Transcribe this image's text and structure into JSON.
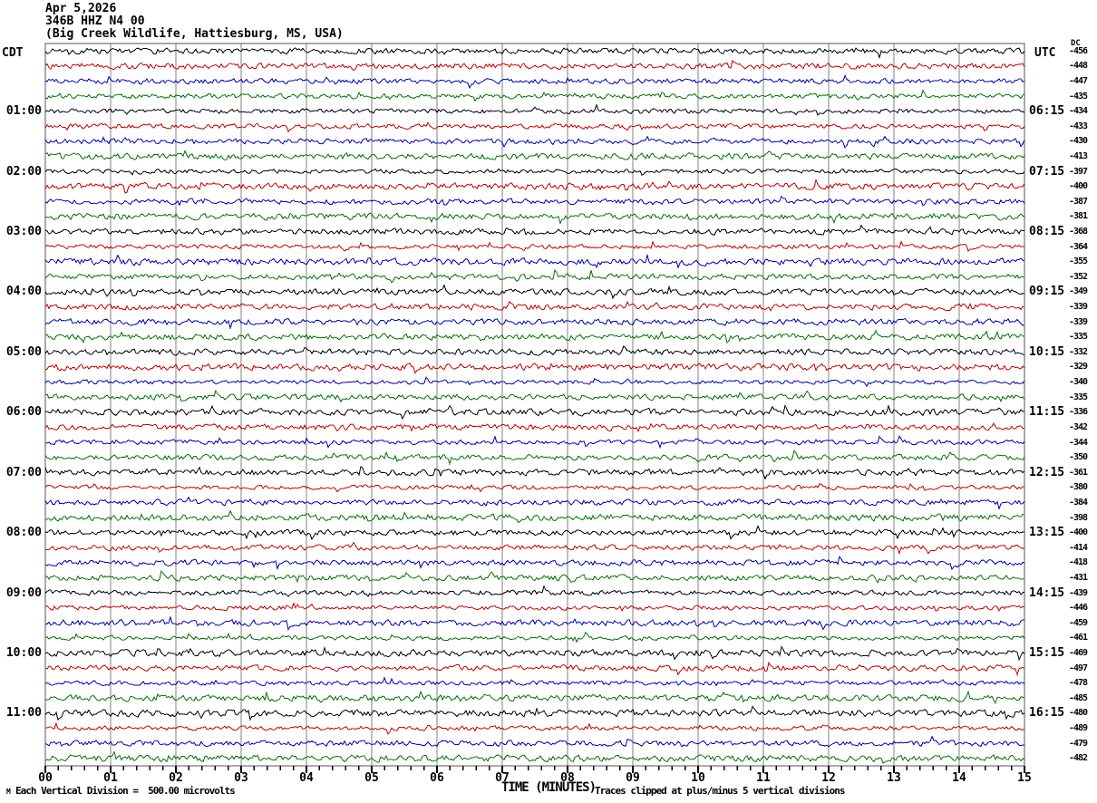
{
  "header": {
    "date": "Apr 5,2026",
    "station": "346B HHZ N4 00",
    "location": "(Big Creek Wildlife, Hattiesburg, MS, USA)"
  },
  "axes": {
    "left_title": "CDT",
    "right_title": "UTC",
    "dc_title": "DC",
    "x_title": "TIME (MINUTES)",
    "x_ticks": [
      "00",
      "01",
      "02",
      "03",
      "04",
      "05",
      "06",
      "07",
      "08",
      "09",
      "10",
      "11",
      "12",
      "13",
      "14",
      "15"
    ]
  },
  "footer": {
    "left_note": "Each Vertical Division =  500.00 microvolts",
    "right_note": "Traces clipped at plus/minus 5 vertical divisions",
    "corner_mark": "M"
  },
  "chart_data": {
    "type": "line",
    "title": "Helicorder seismogram — 346B HHZ N4 00, Big Creek Wildlife, Hattiesburg, MS, USA, Apr 5,2026",
    "xlabel": "TIME (MINUTES)",
    "x_range": [
      0,
      15
    ],
    "x_major_tick_minutes": 1,
    "x_minor_ticks_per_major": 4,
    "rows": 48,
    "minutes_per_row": 15,
    "row_color_cycle": [
      "#000000",
      "#cc0000",
      "#0000bb",
      "#007700"
    ],
    "grid_color": "#808080",
    "border_color": "#555555",
    "labeled_row_interval": 4,
    "first_labeled_row": 4,
    "left_time_labels_cdt": [
      "01:00",
      "02:00",
      "03:00",
      "04:00",
      "05:00",
      "06:00",
      "07:00",
      "08:00",
      "09:00",
      "10:00",
      "11:00"
    ],
    "right_time_labels_utc": [
      "06:15",
      "07:15",
      "08:15",
      "09:15",
      "10:15",
      "11:15",
      "12:15",
      "13:15",
      "14:15",
      "15:15",
      "16:15"
    ],
    "dc_offsets": [
      -456,
      -448,
      -447,
      -435,
      -434,
      -433,
      -430,
      -413,
      -397,
      -400,
      -387,
      -381,
      -368,
      -364,
      -355,
      -352,
      -349,
      -339,
      -339,
      -335,
      -332,
      -329,
      -340,
      -335,
      -336,
      -342,
      -344,
      -350,
      -361,
      -380,
      -384,
      -398,
      -400,
      -414,
      -418,
      -431,
      -439,
      -446,
      -459,
      -461,
      -469,
      -497,
      -478,
      -485,
      -480,
      -489,
      -479,
      -482
    ],
    "vertical_division_microvolts": 500.0,
    "clip_divisions": 5,
    "waveform_note": "Continuous ambient seismic noise on every row; no large discrete events visible"
  }
}
